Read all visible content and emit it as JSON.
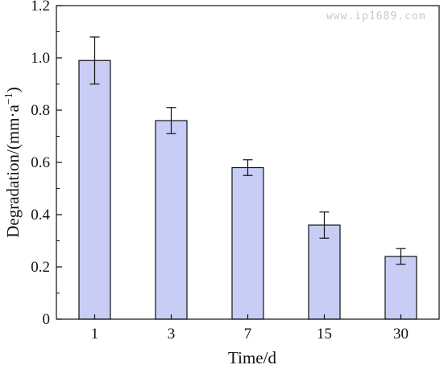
{
  "chart_data": {
    "type": "bar",
    "categories": [
      "1",
      "3",
      "7",
      "15",
      "30"
    ],
    "series": [
      {
        "values": [
          0.99,
          0.76,
          0.58,
          0.36,
          0.24
        ],
        "errors": [
          0.09,
          0.05,
          0.03,
          0.05,
          0.03
        ]
      }
    ],
    "xlabel": "Time/d",
    "ylabel": "Degradation/(mm·a",
    "ylabel_sup": "−1",
    "ylabel_close": ")",
    "ylim": [
      0,
      1.2
    ],
    "yticks": [
      "0",
      "0.2",
      "0.4",
      "0.6",
      "0.8",
      "1.0",
      "1.2"
    ],
    "grid": false,
    "bar_color": "#c8cdf5",
    "edge_color": "#111111"
  },
  "watermark": "www.ip1689.com"
}
